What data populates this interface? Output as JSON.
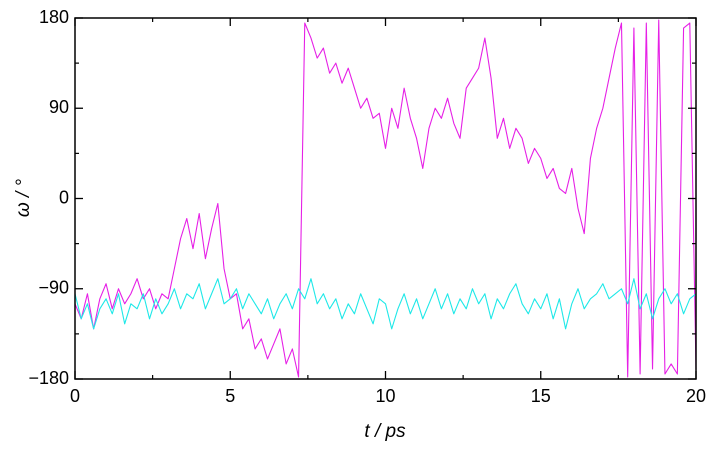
{
  "chart_data": {
    "type": "line",
    "x_label": "t / ps",
    "y_label": "ω / °",
    "xlim": [
      0,
      20
    ],
    "ylim": [
      -180,
      180
    ],
    "xticks": [
      0,
      5,
      10,
      15,
      20
    ],
    "yticks": [
      {
        "value": -180,
        "label": "−180"
      },
      {
        "value": -90,
        "label": "−90"
      },
      0,
      90,
      180
    ],
    "xticks_minor": [
      2.5,
      7.5,
      12.5,
      17.5
    ],
    "yticks_minor": [
      -135,
      -45,
      45,
      135
    ],
    "x": [
      0,
      0.2,
      0.4,
      0.6,
      0.8,
      1,
      1.2,
      1.4,
      1.6,
      1.8,
      2,
      2.2,
      2.4,
      2.6,
      2.8,
      3,
      3.2,
      3.4,
      3.6,
      3.8,
      4,
      4.2,
      4.4,
      4.6,
      4.8,
      5,
      5.2,
      5.4,
      5.6,
      5.8,
      6,
      6.2,
      6.4,
      6.6,
      6.8,
      7,
      7.2,
      7.4,
      7.6,
      7.8,
      8,
      8.2,
      8.4,
      8.6,
      8.8,
      9,
      9.2,
      9.4,
      9.6,
      9.8,
      10,
      10.2,
      10.4,
      10.6,
      10.8,
      11,
      11.2,
      11.4,
      11.6,
      11.8,
      12,
      12.2,
      12.4,
      12.6,
      12.8,
      13,
      13.2,
      13.4,
      13.6,
      13.8,
      14,
      14.2,
      14.4,
      14.6,
      14.8,
      15,
      15.2,
      15.4,
      15.6,
      15.8,
      16,
      16.2,
      16.4,
      16.6,
      16.8,
      17,
      17.2,
      17.4,
      17.6,
      17.8,
      18,
      18.2,
      18.4,
      18.6,
      18.8,
      19,
      19.2,
      19.4,
      19.6,
      19.8,
      20
    ],
    "series": [
      {
        "color": "#e620e6",
        "values": [
          -105,
          -120,
          -95,
          -130,
          -100,
          -85,
          -110,
          -90,
          -105,
          -95,
          -80,
          -100,
          -90,
          -110,
          -95,
          -100,
          -70,
          -40,
          -20,
          -50,
          -15,
          -60,
          -30,
          -5,
          -70,
          -100,
          -95,
          -130,
          -120,
          -150,
          -140,
          -160,
          -145,
          -130,
          -165,
          -150,
          -178,
          175,
          160,
          140,
          150,
          125,
          135,
          115,
          130,
          110,
          90,
          100,
          80,
          85,
          50,
          90,
          70,
          110,
          80,
          60,
          30,
          70,
          90,
          80,
          100,
          75,
          60,
          110,
          120,
          130,
          160,
          120,
          60,
          80,
          50,
          70,
          60,
          35,
          50,
          40,
          20,
          30,
          10,
          5,
          30,
          -10,
          -35,
          40,
          70,
          90,
          120,
          150,
          175,
          -178,
          170,
          -175,
          175,
          -170,
          178,
          -175,
          -165,
          -175,
          170,
          175,
          -170
        ]
      },
      {
        "color": "#1ee8e8",
        "values": [
          -95,
          -120,
          -105,
          -130,
          -110,
          -100,
          -115,
          -95,
          -125,
          -105,
          -110,
          -95,
          -120,
          -100,
          -115,
          -105,
          -90,
          -110,
          -95,
          -100,
          -85,
          -110,
          -95,
          -80,
          -105,
          -100,
          -90,
          -110,
          -95,
          -105,
          -115,
          -100,
          -120,
          -105,
          -95,
          -110,
          -90,
          -100,
          -80,
          -105,
          -95,
          -110,
          -100,
          -120,
          -105,
          -115,
          -95,
          -110,
          -125,
          -100,
          -105,
          -130,
          -110,
          -95,
          -115,
          -100,
          -120,
          -105,
          -90,
          -110,
          -95,
          -115,
          -100,
          -110,
          -90,
          -105,
          -95,
          -120,
          -100,
          -110,
          -95,
          -85,
          -105,
          -115,
          -100,
          -110,
          -95,
          -120,
          -100,
          -130,
          -105,
          -90,
          -110,
          -100,
          -95,
          -85,
          -100,
          -95,
          -90,
          -105,
          -80,
          -110,
          -95,
          -120,
          -100,
          -90,
          -105,
          -95,
          -115,
          -100,
          -95
        ]
      }
    ]
  }
}
